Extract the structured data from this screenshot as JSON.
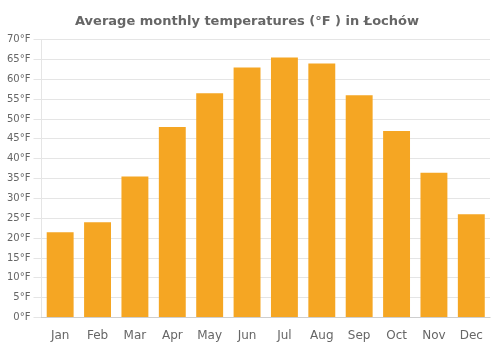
{
  "chart_data": {
    "type": "bar",
    "title": "Average monthly temperatures (°F ) in Łochów",
    "categories": [
      "Jan",
      "Feb",
      "Mar",
      "Apr",
      "May",
      "Jun",
      "Jul",
      "Aug",
      "Sep",
      "Oct",
      "Nov",
      "Dec"
    ],
    "values": [
      21.5,
      24.0,
      35.5,
      48.0,
      56.5,
      63.0,
      65.5,
      64.0,
      56.0,
      47.0,
      36.5,
      26.0
    ],
    "color": "#F5A623",
    "ylim": [
      0,
      70
    ],
    "yticks": [
      {
        "value": 0,
        "label": "0°F"
      },
      {
        "value": 5,
        "label": "5°F"
      },
      {
        "value": 10,
        "label": "10°F"
      },
      {
        "value": 15,
        "label": "15°F"
      },
      {
        "value": 20,
        "label": "20°F"
      },
      {
        "value": 25,
        "label": "25°F"
      },
      {
        "value": 30,
        "label": "30°F"
      },
      {
        "value": 35,
        "label": "35°F"
      },
      {
        "value": 40,
        "label": "40°F"
      },
      {
        "value": 45,
        "label": "45°F"
      },
      {
        "value": 50,
        "label": "50°F"
      },
      {
        "value": 55,
        "label": "55°F"
      },
      {
        "value": 60,
        "label": "60°F"
      },
      {
        "value": 65,
        "label": "65°F"
      },
      {
        "value": 70,
        "label": "70°F"
      }
    ],
    "grid": true
  }
}
